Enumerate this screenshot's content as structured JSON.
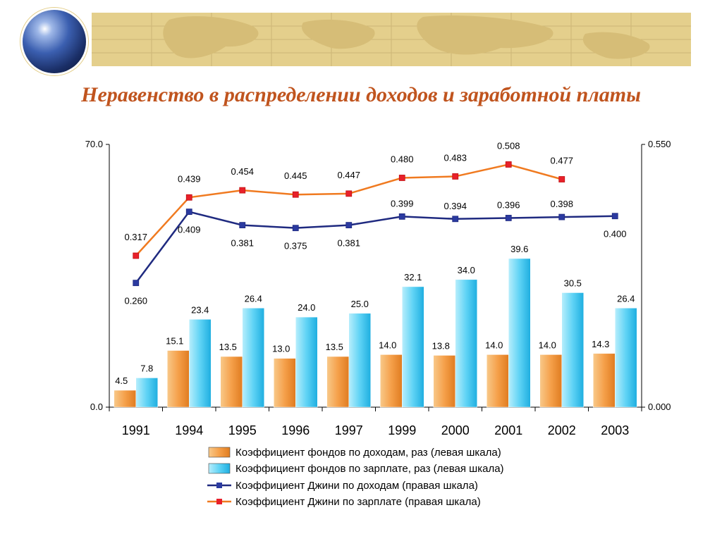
{
  "title": "Неравенство в распределении доходов и заработной платы",
  "chart_data": {
    "type": "bar",
    "categories": [
      "1991",
      "1994",
      "1995",
      "1996",
      "1997",
      "1999",
      "2000",
      "2001",
      "2002",
      "2003"
    ],
    "left_axis": {
      "min": 0,
      "max": 70,
      "ticks": [
        "0.0",
        "70.0"
      ]
    },
    "right_axis": {
      "min": 0,
      "max": 0.55,
      "ticks": [
        "0.000",
        "0.550"
      ]
    },
    "bar_series": [
      {
        "name": "Коэффициент фондов по доходам, раз (левая шкала)",
        "color": "#f5a04a",
        "values": [
          4.5,
          15.1,
          13.5,
          13.0,
          13.5,
          14.0,
          13.8,
          14.0,
          14.0,
          14.3
        ],
        "labels": [
          "4.5",
          "15.1",
          "13.5",
          "13.0",
          "13.5",
          "14.0",
          "13.8",
          "14.0",
          "14.0",
          "14.3"
        ]
      },
      {
        "name": "Коэффициент фондов по зарплате, раз (левая шкала)",
        "color": "#3ec8f2",
        "values": [
          7.8,
          23.4,
          26.4,
          24.0,
          25.0,
          32.1,
          34.0,
          39.6,
          30.5,
          26.4
        ],
        "labels": [
          "7.8",
          "23.4",
          "26.4",
          "24.0",
          "25.0",
          "32.1",
          "34.0",
          "39.6",
          "30.5",
          "26.4"
        ]
      }
    ],
    "line_series": [
      {
        "name": "Коэффициент Джини по доходам (правая шкала)",
        "color": "#1f2a80",
        "values": [
          0.26,
          0.409,
          0.381,
          0.375,
          0.381,
          0.399,
          0.394,
          0.396,
          0.398,
          0.4
        ],
        "labels": [
          "0.260",
          "0.409",
          "0.381",
          "0.375",
          "0.381",
          "0.399",
          "0.394",
          "0.396",
          "0.398",
          "0.400"
        ]
      },
      {
        "name": "Коэффициент Джини по зарплате (правая шкала)",
        "color": "#f07a20",
        "values": [
          0.317,
          0.439,
          0.454,
          0.445,
          0.447,
          0.48,
          0.483,
          0.508,
          0.477,
          null
        ],
        "labels": [
          "0.317",
          "0.439",
          "0.454",
          "0.445",
          "0.447",
          "0.480",
          "0.483",
          "0.508",
          "0.477",
          ""
        ]
      }
    ]
  }
}
